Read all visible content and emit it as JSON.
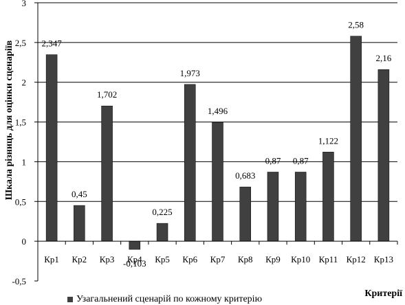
{
  "chart_data": {
    "type": "bar",
    "categories": [
      "Кр1",
      "Кр2",
      "Кр3",
      "Кр4",
      "Кр5",
      "Кр6",
      "Кр7",
      "Кр8",
      "Кр9",
      "Кр10",
      "Кр11",
      "Кр12",
      "Кр13"
    ],
    "series": [
      {
        "name": "Узагальнений сценарій по кожному критерію",
        "values": [
          2.347,
          0.45,
          1.702,
          -0.103,
          0.225,
          1.973,
          1.496,
          0.683,
          0.87,
          0.87,
          1.122,
          2.58,
          2.16
        ],
        "labels": [
          "2,347",
          "0,45",
          "1,702",
          "-0,103",
          "0,225",
          "1,973",
          "1,496",
          "0,683",
          "0,87",
          "0,87",
          "1,122",
          "2,58",
          "2,16"
        ],
        "color": "#404040"
      }
    ],
    "xlabel": "Критерії",
    "ylabel": "Шкала різниць для оцінки сценаріїв",
    "ylim": [
      -0.5,
      3
    ],
    "yticks": [
      -0.5,
      0,
      0.5,
      1,
      1.5,
      2,
      2.5,
      3
    ],
    "ytick_labels": [
      "-0,5",
      "0",
      "0,5",
      "1",
      "1,5",
      "2",
      "2,5",
      "3"
    ],
    "grid": true,
    "legend_position": "bottom"
  }
}
